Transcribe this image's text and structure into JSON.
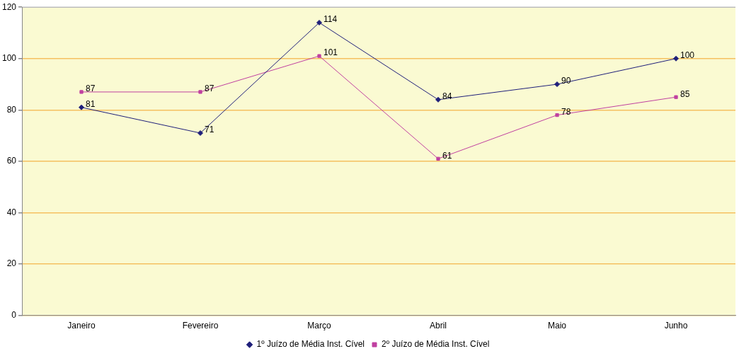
{
  "chart_data": {
    "type": "line",
    "categories": [
      "Janeiro",
      "Fevereiro",
      "Março",
      "Abril",
      "Maio",
      "Junho"
    ],
    "series": [
      {
        "name": "1º Juízo de Média Inst. Cível",
        "color": "#1f1f7a",
        "marker": "diamond",
        "values": [
          81,
          71,
          114,
          84,
          90,
          100
        ]
      },
      {
        "name": "2º Juízo de Média Inst. Cível",
        "color": "#c040a0",
        "marker": "square",
        "values": [
          87,
          87,
          101,
          61,
          78,
          85
        ]
      }
    ],
    "ylim": [
      0,
      120
    ],
    "yticks": [
      0,
      20,
      40,
      60,
      80,
      100,
      120
    ],
    "grid": "y",
    "legend": "bottom",
    "data_labels": true
  }
}
